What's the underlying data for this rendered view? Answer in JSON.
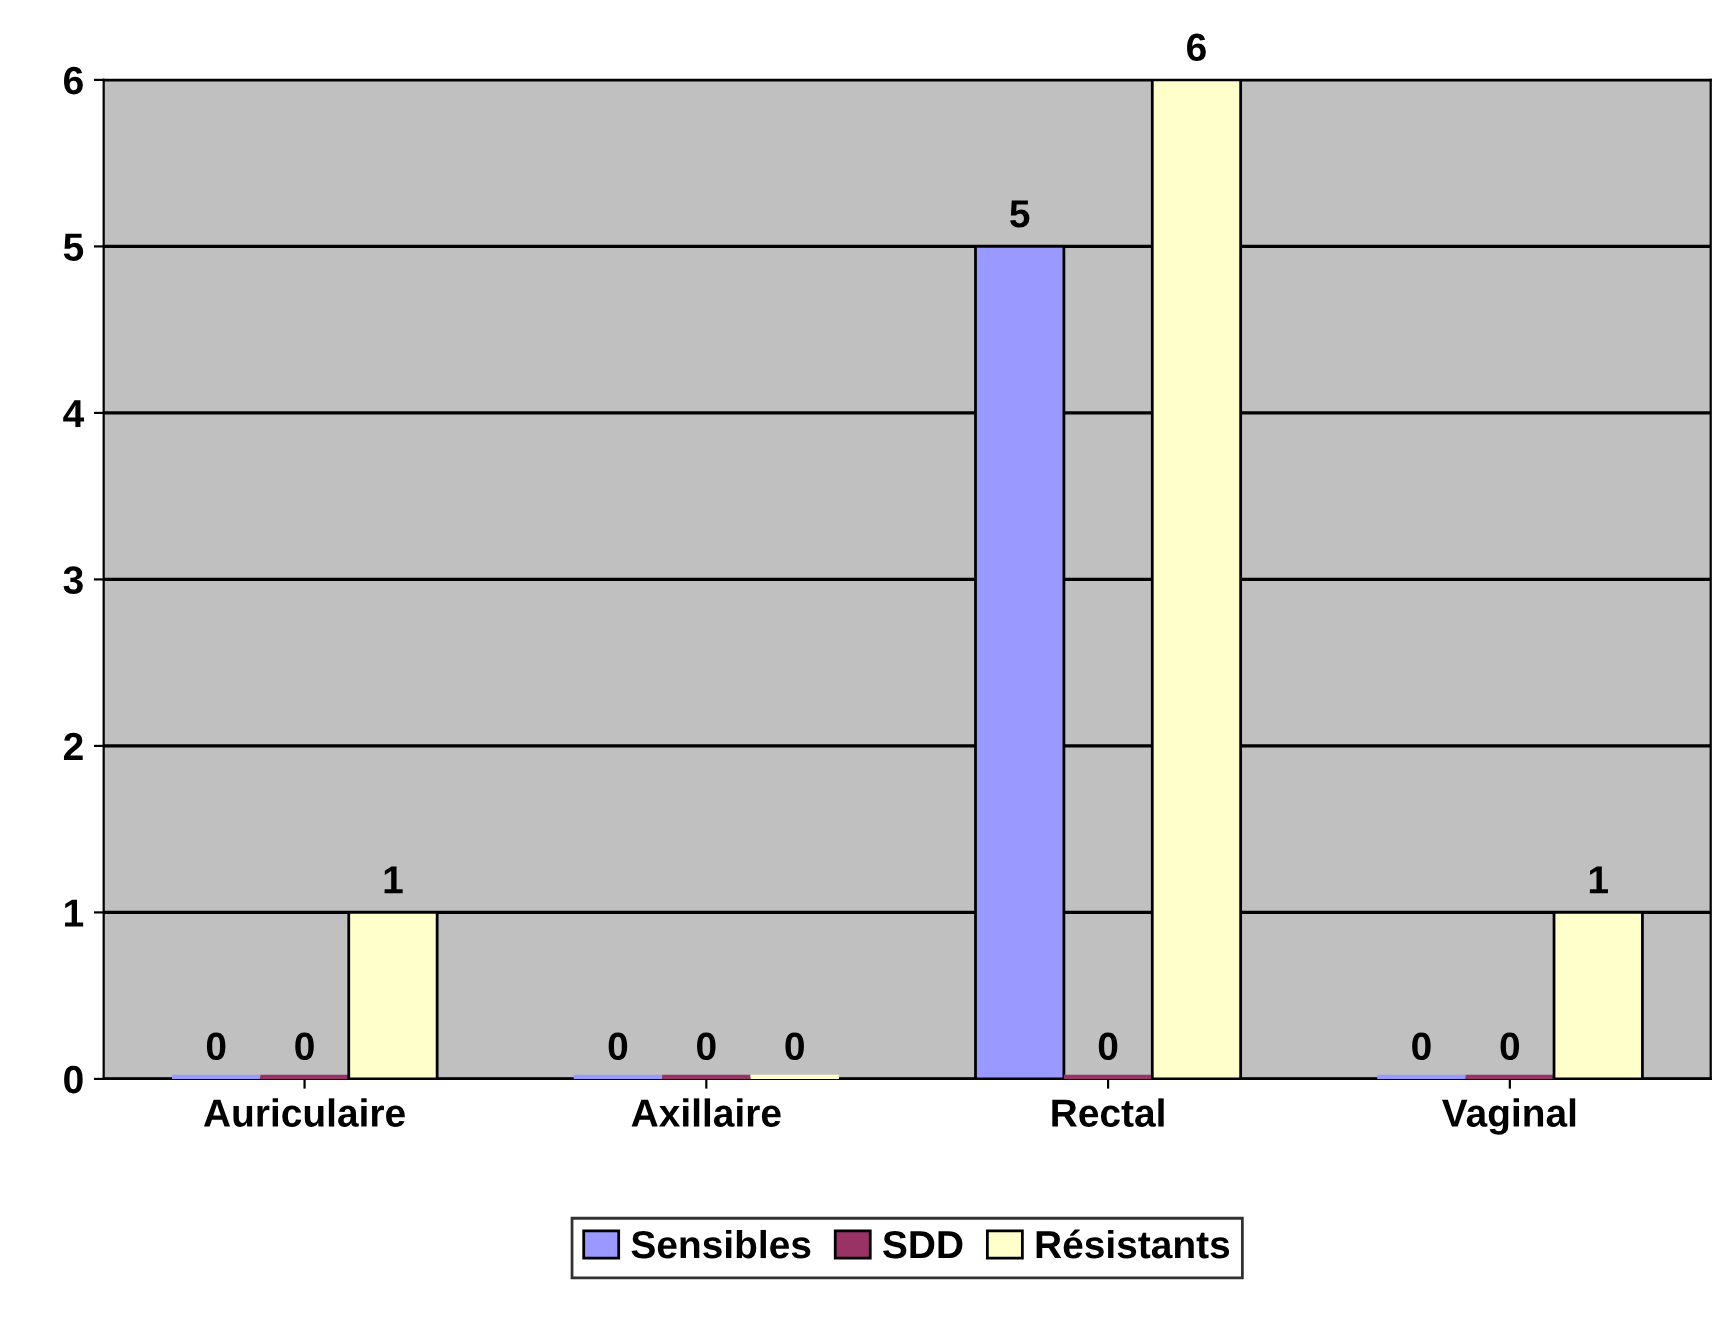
{
  "chart_data": {
    "type": "bar",
    "categories": [
      "Auriculaire",
      "Axillaire",
      "Rectal",
      "Vaginal"
    ],
    "series": [
      {
        "name": "Sensibles",
        "color": "#9999ff",
        "values": [
          0,
          0,
          5,
          0
        ]
      },
      {
        "name": "SDD",
        "color": "#993366",
        "values": [
          0,
          0,
          0,
          0
        ]
      },
      {
        "name": "Résistants",
        "color": "#ffffcc",
        "values": [
          1,
          0,
          6,
          1
        ]
      }
    ],
    "ylim": [
      0,
      6
    ],
    "yticks": [
      0,
      1,
      2,
      3,
      4,
      5,
      6
    ],
    "grid": "y",
    "legend": "bottom",
    "data_labels": true
  }
}
